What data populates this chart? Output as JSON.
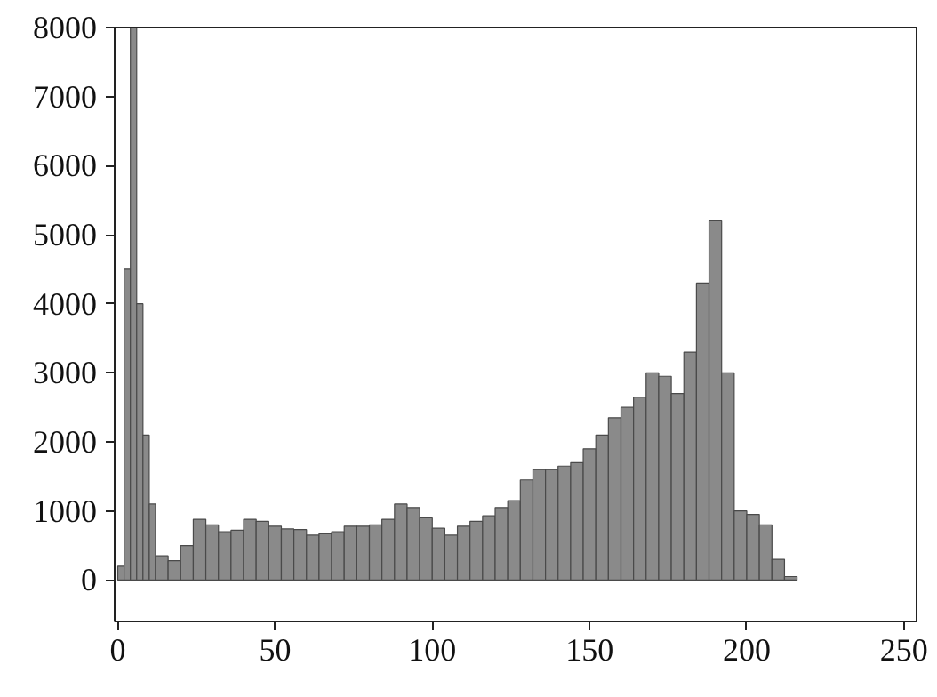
{
  "chart_data": {
    "type": "histogram",
    "bins": [
      0,
      2,
      4,
      6,
      8,
      10,
      12,
      16,
      20,
      24,
      28,
      32,
      36,
      40,
      44,
      48,
      52,
      56,
      60,
      64,
      68,
      72,
      76,
      80,
      84,
      88,
      92,
      96,
      100,
      104,
      108,
      112,
      116,
      120,
      124,
      128,
      132,
      136,
      140,
      144,
      148,
      152,
      156,
      160,
      164,
      168,
      172,
      176,
      180,
      184,
      188,
      192,
      196,
      200,
      204,
      208,
      212,
      216
    ],
    "values": [
      200,
      4500,
      8000,
      4000,
      2100,
      1100,
      350,
      280,
      500,
      880,
      800,
      700,
      720,
      880,
      850,
      780,
      740,
      730,
      650,
      670,
      700,
      780,
      780,
      800,
      880,
      1100,
      1050,
      900,
      750,
      650,
      780,
      850,
      930,
      1050,
      1150,
      1450,
      1600,
      1600,
      1650,
      1700,
      1900,
      2100,
      2350,
      2500,
      2650,
      3000,
      2950,
      2700,
      3300,
      4300,
      5200,
      3000,
      1000,
      950,
      800,
      300,
      50
    ],
    "color": "#8a8a8a",
    "xlim": [
      -1,
      254
    ],
    "ylim": [
      -600,
      8000
    ],
    "xticks": [
      0,
      50,
      100,
      150,
      200,
      250
    ],
    "yticks": [
      0,
      1000,
      2000,
      3000,
      4000,
      5000,
      6000,
      7000,
      8000
    ],
    "grid": false
  }
}
